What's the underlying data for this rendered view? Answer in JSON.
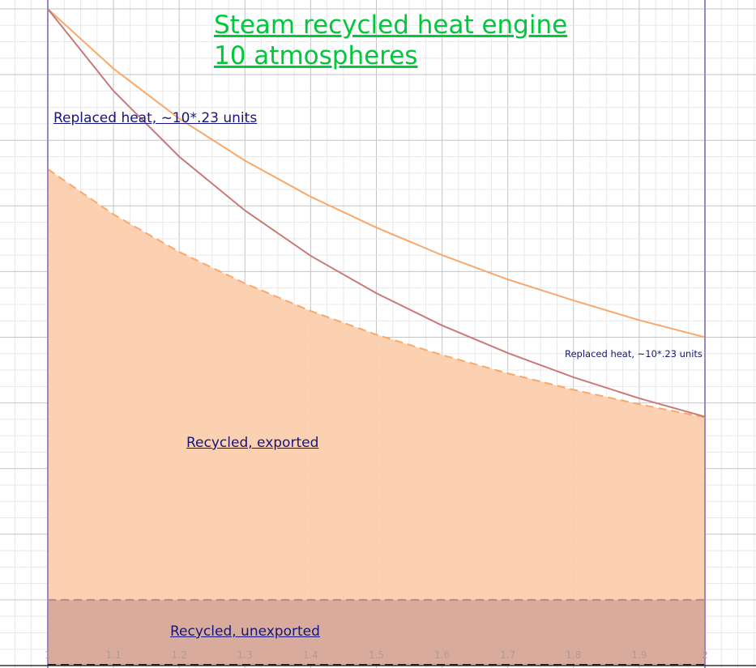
{
  "chart_data": {
    "type": "area",
    "title": [
      "Steam recycled heat engine",
      "10 atmospheres"
    ],
    "xlabel": "",
    "ylabel": "",
    "xlim": [
      0.99,
      2.08
    ],
    "ylim": [
      0,
      1.0
    ],
    "grid": true,
    "x_ticks": [
      "1",
      "1.1",
      "1.2",
      "1.3",
      "1.4",
      "1.5",
      "1.6",
      "1.7",
      "1.8",
      "1.9",
      "2"
    ],
    "x": [
      1,
      1.1,
      1.2,
      1.3,
      1.4,
      1.5,
      1.6,
      1.7,
      1.8,
      1.9,
      2
    ],
    "series": [
      {
        "style": "solid line",
        "color": "#f9a86a",
        "values": [
          1,
          0.909,
          0.833,
          0.769,
          0.714,
          0.667,
          0.625,
          0.588,
          0.556,
          0.526,
          0.5
        ]
      },
      {
        "style": "solid line",
        "color": "#c97a78",
        "values": [
          1,
          0.875,
          0.775,
          0.693,
          0.624,
          0.567,
          0.518,
          0.476,
          0.439,
          0.407,
          0.379
        ]
      },
      {
        "style": "dashed line, filled to 0.1",
        "color": "#f9a86a",
        "fill": "#fbcfae",
        "values": [
          0.756,
          0.687,
          0.63,
          0.582,
          0.54,
          0.504,
          0.473,
          0.445,
          0.42,
          0.398,
          0.378
        ]
      },
      {
        "style": "dashed line, filled to 0",
        "color": "#b88a80",
        "fill": "#d9ab9c",
        "values": [
          0.1,
          0.1,
          0.1,
          0.1,
          0.1,
          0.1,
          0.1,
          0.1,
          0.1,
          0.1,
          0.1
        ]
      }
    ],
    "vertical_lines": {
      "x": [
        1,
        2
      ],
      "color": "#9a86c2"
    },
    "annotations": {
      "replaced_heat_large": "Replaced heat, ~10*.23 units",
      "replaced_heat_small": "Replaced heat, ~10*.23 units",
      "recycled_exported": "Recycled, exported",
      "recycled_unexported": "Recycled, unexported"
    }
  }
}
